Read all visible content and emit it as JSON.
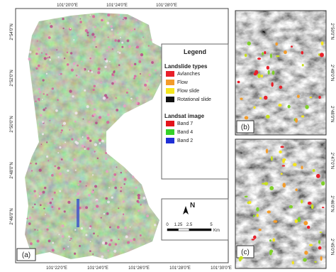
{
  "panels": {
    "a": "(a)",
    "b": "(b)",
    "c": "(c)"
  },
  "map_a": {
    "top_ticks": [
      "101°20'0\"E",
      "101°24'0\"E",
      "101°28'0\"E"
    ],
    "bottom_ticks": [
      "101°22'0\"E",
      "101°24'0\"E",
      "101°26'0\"E",
      "101°28'0\"E",
      "101°30'0\"E"
    ],
    "left_ticks": [
      "2°54'0\"N",
      "2°52'0\"N",
      "2°50'0\"N",
      "2°48'0\"N",
      "2°46'0\"N"
    ]
  },
  "legend": {
    "title": "Legend",
    "groups": [
      {
        "title": "Landslide types",
        "items": [
          {
            "label": "Avlanches",
            "color": "#e8202a"
          },
          {
            "label": "Flow",
            "color": "#f39c2b"
          },
          {
            "label": "Flow slide",
            "color": "#f5e61e"
          },
          {
            "label": "Rotational slide",
            "color": "#111111"
          }
        ]
      },
      {
        "title": "Landsat image",
        "items": [
          {
            "label": "Band 7",
            "color": "#e3141b"
          },
          {
            "label": "Band 4",
            "color": "#35d22a"
          },
          {
            "label": "Band 2",
            "color": "#1f2fd6"
          }
        ]
      }
    ]
  },
  "scale_bar": {
    "north": "N",
    "ticks": [
      0,
      1.25,
      2.5,
      5
    ],
    "unit": "Km"
  },
  "side_ticks": {
    "b": [
      "2°50'0\"N",
      "2°49'0\"N",
      "2°48'0\"N"
    ],
    "c": [
      "2°47'0\"N",
      "2°46'0\"N",
      "2°45'0\"N"
    ]
  }
}
